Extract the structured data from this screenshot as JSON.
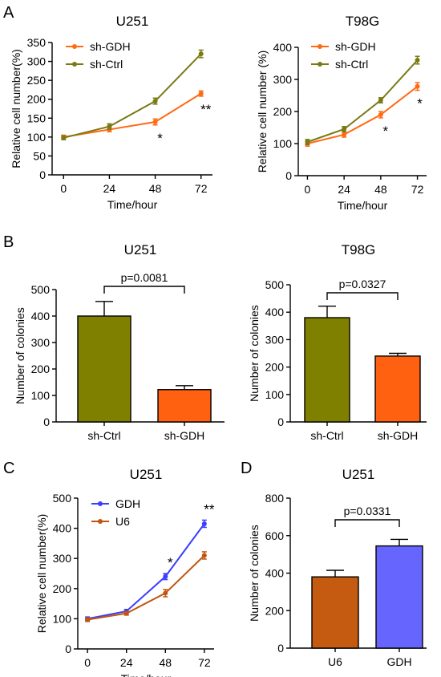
{
  "panel_labels": [
    "A",
    "B",
    "C",
    "D"
  ],
  "chart_data": [
    {
      "id": "A1",
      "type": "line",
      "title": "U251",
      "xlabel": "Time/hour",
      "ylabel": "Relative cell number(%)",
      "x": [
        0,
        24,
        48,
        72
      ],
      "xlim": [
        -6,
        78
      ],
      "ylim": [
        0,
        350
      ],
      "yticks": [
        0,
        50,
        100,
        150,
        200,
        250,
        300,
        350
      ],
      "series": [
        {
          "name": "sh-GDH",
          "color": "#ff6a13",
          "values": [
            100,
            120,
            140,
            215
          ],
          "errors": [
            5,
            6,
            8,
            7
          ]
        },
        {
          "name": "sh-Ctrl",
          "color": "#7a7a14",
          "values": [
            98,
            128,
            195,
            320
          ],
          "errors": [
            5,
            7,
            8,
            10
          ]
        }
      ],
      "annotations": [
        {
          "x": 48,
          "text": "*"
        },
        {
          "x": 72,
          "text": "**"
        }
      ]
    },
    {
      "id": "A2",
      "type": "line",
      "title": "T98G",
      "xlabel": "Time/hour",
      "ylabel": "Relative cell number (%)",
      "x": [
        0,
        24,
        48,
        72
      ],
      "xlim": [
        -6,
        78
      ],
      "ylim": [
        0,
        400
      ],
      "yticks": [
        0,
        100,
        200,
        300,
        400
      ],
      "series": [
        {
          "name": "sh-GDH",
          "color": "#ff6a13",
          "values": [
            100,
            128,
            190,
            278
          ],
          "errors": [
            8,
            8,
            10,
            12
          ]
        },
        {
          "name": "sh-Ctrl",
          "color": "#7a7a14",
          "values": [
            105,
            145,
            235,
            360
          ],
          "errors": [
            8,
            8,
            8,
            12
          ]
        }
      ],
      "annotations": [
        {
          "x": 48,
          "text": "*"
        },
        {
          "x": 72,
          "text": "*"
        }
      ]
    },
    {
      "id": "B1",
      "type": "bar",
      "title": "U251",
      "xlabel": "",
      "ylabel": "Number of colonies",
      "categories": [
        "sh-Ctrl",
        "sh-GDH"
      ],
      "values": [
        400,
        122
      ],
      "errors": [
        55,
        15
      ],
      "colors": [
        "#808000",
        "#ff6111"
      ],
      "ylim": [
        0,
        500
      ],
      "yticks": [
        0,
        100,
        200,
        300,
        400,
        500
      ],
      "pvalue": "p=0.0081"
    },
    {
      "id": "B2",
      "type": "bar",
      "title": "T98G",
      "xlabel": "",
      "ylabel": "Number of colonies",
      "categories": [
        "sh-Ctrl",
        "sh-GDH"
      ],
      "values": [
        380,
        240
      ],
      "errors": [
        42,
        10
      ],
      "colors": [
        "#808000",
        "#ff6111"
      ],
      "ylim": [
        0,
        500
      ],
      "yticks": [
        0,
        100,
        200,
        300,
        400,
        500
      ],
      "pvalue": "p=0.0327"
    },
    {
      "id": "C",
      "type": "line",
      "title": "U251",
      "xlabel": "Time/hour",
      "ylabel": "Relative cell number(%)",
      "x": [
        0,
        24,
        48,
        72
      ],
      "xlim": [
        -6,
        78
      ],
      "ylim": [
        0,
        500
      ],
      "yticks": [
        0,
        100,
        200,
        300,
        400,
        500
      ],
      "series": [
        {
          "name": "GDH",
          "color": "#3d3dff",
          "values": [
            100,
            125,
            240,
            415
          ],
          "errors": [
            6,
            6,
            10,
            12
          ]
        },
        {
          "name": "U6",
          "color": "#c0560e",
          "values": [
            97,
            118,
            185,
            310
          ],
          "errors": [
            6,
            6,
            12,
            12
          ]
        }
      ],
      "annotations": [
        {
          "x": 48,
          "text": "*"
        },
        {
          "x": 72,
          "text": "**"
        }
      ]
    },
    {
      "id": "D",
      "type": "bar",
      "title": "U251",
      "xlabel": "",
      "ylabel": "Number of colonies",
      "categories": [
        "U6",
        "GDH"
      ],
      "values": [
        380,
        545
      ],
      "errors": [
        35,
        35
      ],
      "colors": [
        "#c55a11",
        "#6666ff"
      ],
      "ylim": [
        0,
        800
      ],
      "yticks": [
        0,
        200,
        400,
        600,
        800
      ],
      "pvalue": "p=0.0331"
    }
  ]
}
